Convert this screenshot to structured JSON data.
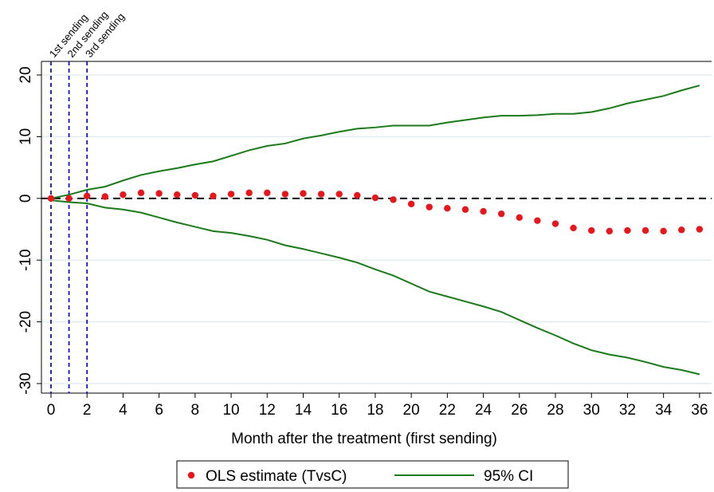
{
  "chart_data": {
    "type": "line",
    "x_label": "Month after the treatment (first sending)",
    "x": [
      0,
      1,
      2,
      3,
      4,
      5,
      6,
      7,
      8,
      9,
      10,
      11,
      12,
      13,
      14,
      15,
      16,
      17,
      18,
      19,
      20,
      21,
      22,
      23,
      24,
      25,
      26,
      27,
      28,
      29,
      30,
      31,
      32,
      33,
      34,
      35,
      36
    ],
    "series": [
      {
        "name": "OLS estimate (TvsC)",
        "color": "#e8161b",
        "style": "dots",
        "values": [
          0,
          0,
          0.4,
          0.3,
          0.6,
          0.9,
          0.8,
          0.6,
          0.5,
          0.4,
          0.7,
          0.9,
          0.9,
          0.7,
          0.8,
          0.7,
          0.7,
          0.5,
          0.1,
          -0.2,
          -0.9,
          -1.4,
          -1.6,
          -1.8,
          -2.1,
          -2.5,
          -3.1,
          -3.6,
          -4.1,
          -4.8,
          -5.2,
          -5.3,
          -5.2,
          -5.2,
          -5.3,
          -5.1,
          -5.0
        ]
      },
      {
        "name": "95% CI",
        "color": "#1a7a1a",
        "style": "band-lines",
        "upper": [
          0,
          0.6,
          1.4,
          1.9,
          2.9,
          3.8,
          4.4,
          4.9,
          5.5,
          6.0,
          6.9,
          7.8,
          8.5,
          8.9,
          9.7,
          10.2,
          10.8,
          11.3,
          11.5,
          11.8,
          11.8,
          11.8,
          12.3,
          12.7,
          13.1,
          13.4,
          13.4,
          13.5,
          13.7,
          13.7,
          14.0,
          14.6,
          15.4,
          16.0,
          16.6,
          17.5,
          18.3
        ],
        "lower": [
          -0.3,
          -0.6,
          -0.8,
          -1.5,
          -1.8,
          -2.3,
          -3.1,
          -3.9,
          -4.6,
          -5.3,
          -5.6,
          -6.1,
          -6.7,
          -7.6,
          -8.2,
          -8.9,
          -9.6,
          -10.4,
          -11.5,
          -12.5,
          -13.8,
          -15.1,
          -15.9,
          -16.7,
          -17.5,
          -18.4,
          -19.7,
          -21.0,
          -22.2,
          -23.5,
          -24.6,
          -25.3,
          -25.8,
          -26.5,
          -27.3,
          -27.8,
          -28.5
        ]
      }
    ],
    "annotations": [
      {
        "x": 0,
        "label": "1st sending"
      },
      {
        "x": 1,
        "label": "2nd sending"
      },
      {
        "x": 2,
        "label": "3rd sending"
      }
    ],
    "annotation_color": "#1010d0",
    "reference_line": 0,
    "xlim": [
      -0.53,
      36.67
    ],
    "ylim": [
      -31.55,
      22.2
    ],
    "xticks": [
      0,
      2,
      4,
      6,
      8,
      10,
      12,
      14,
      16,
      18,
      20,
      22,
      24,
      26,
      28,
      30,
      32,
      34,
      36
    ],
    "yticks": [
      -30,
      -20,
      -10,
      0,
      10,
      20
    ],
    "grid": true,
    "legend": "bottom"
  }
}
